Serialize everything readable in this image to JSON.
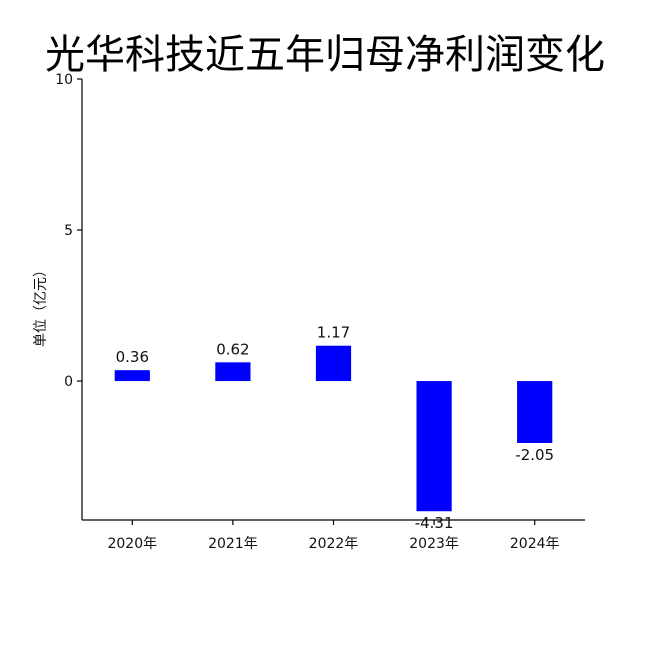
{
  "chart_data": {
    "type": "bar",
    "title": "光华科技近五年归母净利润变化",
    "ylabel": "单位（亿元）",
    "xlabel": "",
    "categories": [
      "2020年",
      "2021年",
      "2022年",
      "2023年",
      "2024年"
    ],
    "values": [
      0.36,
      0.62,
      1.17,
      -4.31,
      -2.05
    ],
    "value_labels": [
      "0.36",
      "0.62",
      "1.17",
      "-4.31",
      "-2.05"
    ],
    "ylim": [
      -4.6,
      10
    ],
    "yticks": [
      0,
      5,
      10
    ],
    "ytick_labels": [
      "0",
      "5",
      "10"
    ],
    "bar_color": "#0000ff",
    "grid": false,
    "legend": "none"
  }
}
